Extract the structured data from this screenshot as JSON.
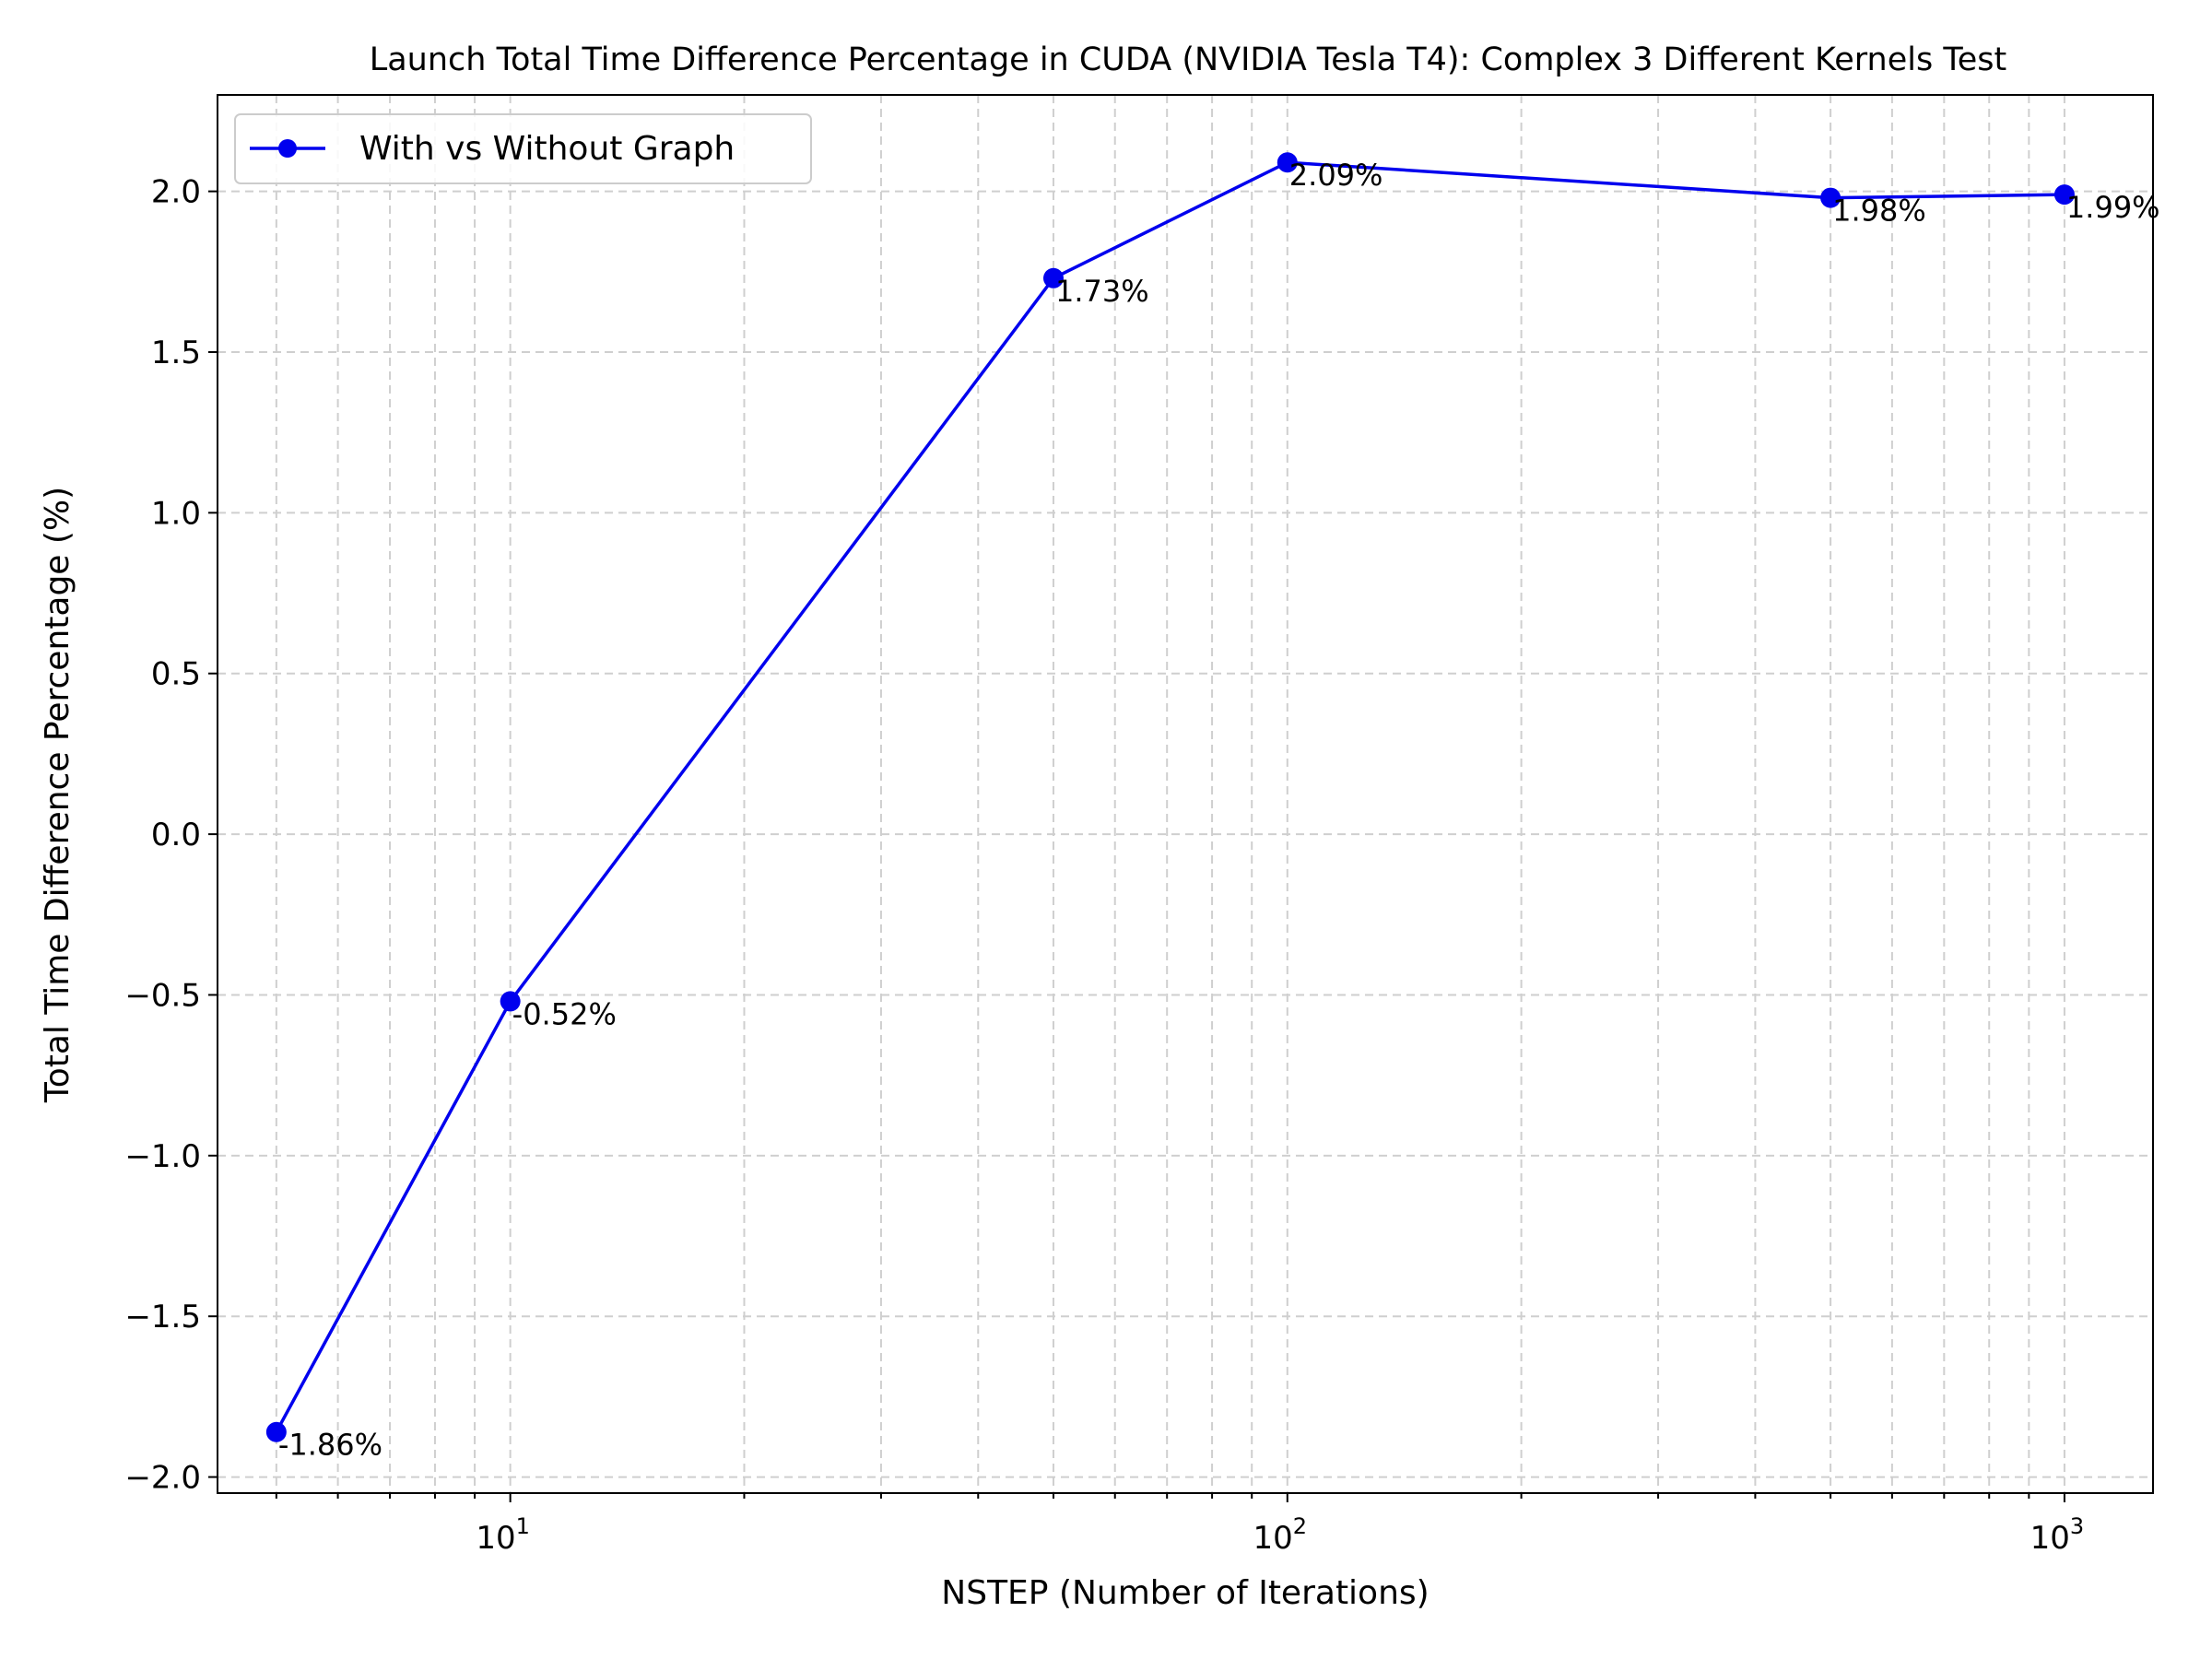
{
  "chart_data": {
    "type": "line",
    "title": "Launch Total Time Difference Percentage in CUDA (NVIDIA Tesla T4): Complex 3 Different Kernels Test",
    "xlabel": "NSTEP (Number of Iterations)",
    "ylabel": "Total Time Difference Percentage (%)",
    "xscale": "log",
    "xlim": [
      4.2,
      1300
    ],
    "ylim": [
      -2.05,
      2.3
    ],
    "grid": true,
    "legend_position": "top-left",
    "x_tick_labels": [
      {
        "value": 10,
        "base": "10",
        "exp": "1"
      },
      {
        "value": 100,
        "base": "10",
        "exp": "2"
      },
      {
        "value": 1000,
        "base": "10",
        "exp": "3"
      }
    ],
    "y_ticks": [
      -2.0,
      -1.5,
      -1.0,
      -0.5,
      0.0,
      0.5,
      1.0,
      1.5,
      2.0
    ],
    "y_tick_labels": [
      "−2.0",
      "−1.5",
      "−1.0",
      "−0.5",
      "0.0",
      "0.5",
      "1.0",
      "1.5",
      "2.0"
    ],
    "series": [
      {
        "name": "With vs Without Graph",
        "color": "#0000ee",
        "marker": "circle",
        "x": [
          5,
          10,
          50,
          100,
          500,
          1000
        ],
        "values": [
          -1.86,
          -0.52,
          1.73,
          2.09,
          1.98,
          1.99
        ],
        "labels": [
          "-1.86%",
          "-0.52%",
          "1.73%",
          "2.09%",
          "1.98%",
          "1.99%"
        ]
      }
    ]
  }
}
